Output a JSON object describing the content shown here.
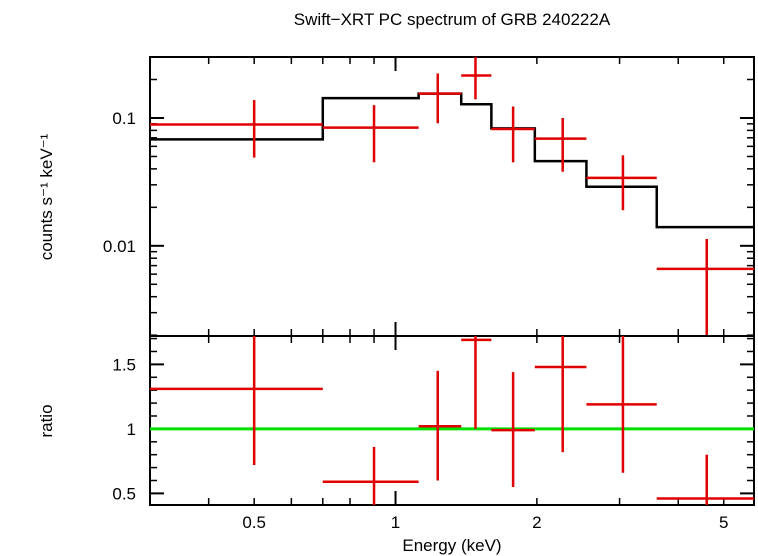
{
  "chart_data": {
    "type": "scatter",
    "title": "Swift−XRT PC spectrum of GRB 240222A",
    "xlabel": "Energy (keV)",
    "x_scale": "log",
    "xlim": [
      0.3,
      5.8
    ],
    "x_ticks": [
      {
        "v": 0.5,
        "label": "0.5"
      },
      {
        "v": 1,
        "label": "1"
      },
      {
        "v": 2,
        "label": "2"
      },
      {
        "v": 5,
        "label": "5"
      }
    ],
    "top_panel": {
      "ylabel": "counts s⁻¹ keV⁻¹",
      "y_scale": "log",
      "ylim": [
        0.00197,
        0.3
      ],
      "y_ticks": [
        {
          "v": 0.1,
          "label": "0.1"
        },
        {
          "v": 0.01,
          "label": "0.01"
        }
      ],
      "data": [
        {
          "x_lo": 0.3,
          "x_hi": 0.7,
          "x": 0.5,
          "y": 0.089,
          "y_lo": 0.049,
          "y_hi": 0.138
        },
        {
          "x_lo": 0.7,
          "x_hi": 1.12,
          "x": 0.9,
          "y": 0.084,
          "y_lo": 0.045,
          "y_hi": 0.126
        },
        {
          "x_lo": 1.12,
          "x_hi": 1.38,
          "x": 1.23,
          "y": 0.155,
          "y_lo": 0.091,
          "y_hi": 0.223
        },
        {
          "x_lo": 1.38,
          "x_hi": 1.6,
          "x": 1.48,
          "y": 0.215,
          "y_lo": 0.14,
          "y_hi": 0.3
        },
        {
          "x_lo": 1.6,
          "x_hi": 1.98,
          "x": 1.78,
          "y": 0.082,
          "y_lo": 0.045,
          "y_hi": 0.123
        },
        {
          "x_lo": 1.98,
          "x_hi": 2.55,
          "x": 2.27,
          "y": 0.069,
          "y_lo": 0.038,
          "y_hi": 0.1
        },
        {
          "x_lo": 2.55,
          "x_hi": 3.6,
          "x": 3.05,
          "y": 0.034,
          "y_lo": 0.019,
          "y_hi": 0.051
        },
        {
          "x_lo": 3.6,
          "x_hi": 5.8,
          "x": 4.6,
          "y": 0.0066,
          "y_lo": 0.00197,
          "y_hi": 0.0113
        }
      ],
      "model": [
        {
          "x_lo": 0.3,
          "x_hi": 0.7,
          "y": 0.068
        },
        {
          "x_lo": 0.7,
          "x_hi": 1.12,
          "y": 0.143
        },
        {
          "x_lo": 1.12,
          "x_hi": 1.38,
          "y": 0.155
        },
        {
          "x_lo": 1.38,
          "x_hi": 1.6,
          "y": 0.128
        },
        {
          "x_lo": 1.6,
          "x_hi": 1.98,
          "y": 0.083
        },
        {
          "x_lo": 1.98,
          "x_hi": 2.55,
          "y": 0.046
        },
        {
          "x_lo": 2.55,
          "x_hi": 3.6,
          "y": 0.029
        },
        {
          "x_lo": 3.6,
          "x_hi": 5.8,
          "y": 0.014
        }
      ]
    },
    "bottom_panel": {
      "ylabel": "ratio",
      "y_scale": "linear",
      "ylim": [
        0.41,
        1.72
      ],
      "y_ticks": [
        {
          "v": 0.5,
          "label": "0.5"
        },
        {
          "v": 1,
          "label": "1"
        },
        {
          "v": 1.5,
          "label": "1.5"
        }
      ],
      "reference_line": 1,
      "data": [
        {
          "x_lo": 0.3,
          "x_hi": 0.7,
          "x": 0.5,
          "y": 1.31,
          "y_lo": 0.72,
          "y_hi": 1.72
        },
        {
          "x_lo": 0.7,
          "x_hi": 1.12,
          "x": 0.9,
          "y": 0.59,
          "y_lo": 0.41,
          "y_hi": 0.86
        },
        {
          "x_lo": 1.12,
          "x_hi": 1.38,
          "x": 1.23,
          "y": 1.02,
          "y_lo": 0.6,
          "y_hi": 1.45
        },
        {
          "x_lo": 1.38,
          "x_hi": 1.6,
          "x": 1.48,
          "y": 1.69,
          "y_lo": 1.0,
          "y_hi": 1.72
        },
        {
          "x_lo": 1.6,
          "x_hi": 1.98,
          "x": 1.78,
          "y": 0.99,
          "y_lo": 0.55,
          "y_hi": 1.44
        },
        {
          "x_lo": 1.98,
          "x_hi": 2.55,
          "x": 2.27,
          "y": 1.48,
          "y_lo": 0.82,
          "y_hi": 1.72
        },
        {
          "x_lo": 2.55,
          "x_hi": 3.6,
          "x": 3.05,
          "y": 1.19,
          "y_lo": 0.66,
          "y_hi": 1.72
        },
        {
          "x_lo": 3.6,
          "x_hi": 5.8,
          "x": 4.6,
          "y": 0.46,
          "y_lo": 0.41,
          "y_hi": 0.8
        }
      ]
    },
    "colors": {
      "data": "#e00000",
      "model": "#000000",
      "reference": "#00e000",
      "axes": "#000000"
    },
    "grid": false,
    "legend": "none"
  }
}
